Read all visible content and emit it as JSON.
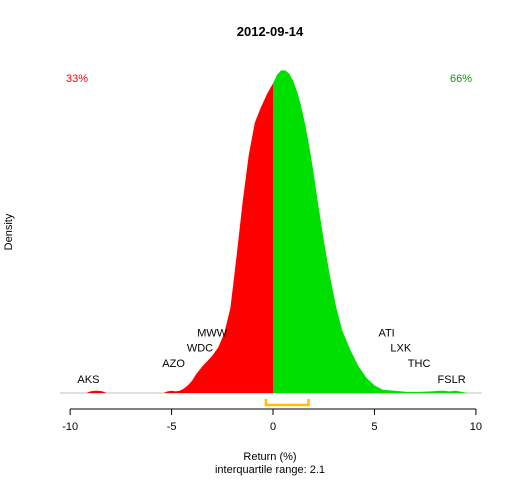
{
  "chart_data": {
    "type": "area",
    "title": "2012-09-14",
    "xlabel": "Return (%)",
    "subtitle": "interquartile range: 2.1",
    "ylabel": "Density",
    "xlim": [
      -10.5,
      10.3
    ],
    "ylim": [
      0,
      0.3
    ],
    "x_ticks": [
      -10,
      -5,
      0,
      5,
      10
    ],
    "x_tick_labels": [
      "-10",
      "-5",
      "0",
      "5",
      "10"
    ],
    "split_at": 0,
    "neg_pct_label": "33%",
    "pos_pct_label": "66%",
    "colors": {
      "negative": "#ff0000",
      "positive": "#00e000",
      "neg_text": "#ff0000",
      "pos_text": "#00a000",
      "iqr": "#ffc000",
      "baseline": "#c0c0c0"
    },
    "iqr": [
      -0.35,
      1.75
    ],
    "density": {
      "x": [
        -9.2,
        -9.0,
        -8.8,
        -8.6,
        -8.4,
        -8.2,
        -5.4,
        -5.2,
        -5.0,
        -4.8,
        -4.6,
        -4.4,
        -4.2,
        -4.0,
        -3.8,
        -3.5,
        -3.2,
        -3.0,
        -2.7,
        -2.4,
        -2.1,
        -1.8,
        -1.5,
        -1.2,
        -0.9,
        -0.6,
        -0.3,
        0.0,
        0.2,
        0.4,
        0.6,
        0.8,
        1.0,
        1.2,
        1.4,
        1.6,
        1.8,
        2.0,
        2.2,
        2.5,
        2.8,
        3.1,
        3.4,
        3.8,
        4.2,
        4.6,
        5.0,
        5.4,
        6.0,
        6.6,
        7.2,
        7.8,
        8.2,
        8.4,
        8.7,
        9.0,
        9.3,
        9.6
      ],
      "y": [
        0.0,
        0.0015,
        0.002,
        0.002,
        0.0015,
        0.0,
        0.0,
        0.0015,
        0.002,
        0.0015,
        0.002,
        0.004,
        0.007,
        0.011,
        0.017,
        0.024,
        0.03,
        0.034,
        0.042,
        0.055,
        0.078,
        0.125,
        0.175,
        0.218,
        0.248,
        0.262,
        0.274,
        0.284,
        0.292,
        0.296,
        0.296,
        0.293,
        0.286,
        0.276,
        0.262,
        0.245,
        0.225,
        0.202,
        0.176,
        0.14,
        0.108,
        0.08,
        0.058,
        0.04,
        0.025,
        0.014,
        0.007,
        0.003,
        0.002,
        0.001,
        0.001,
        0.0015,
        0.002,
        0.002,
        0.0015,
        0.002,
        0.001,
        0.0
      ]
    },
    "annotations": [
      {
        "text": "AKS",
        "x": -9.1,
        "y": 0.009
      },
      {
        "text": "AZO",
        "x": -4.9,
        "y": 0.024
      },
      {
        "text": "WDC",
        "x": -3.6,
        "y": 0.038
      },
      {
        "text": "MWW",
        "x": -3.0,
        "y": 0.052
      },
      {
        "text": "ATI",
        "x": 5.6,
        "y": 0.052
      },
      {
        "text": "LXK",
        "x": 6.3,
        "y": 0.038
      },
      {
        "text": "THC",
        "x": 7.2,
        "y": 0.024
      },
      {
        "text": "FSLR",
        "x": 8.8,
        "y": 0.009
      }
    ]
  }
}
